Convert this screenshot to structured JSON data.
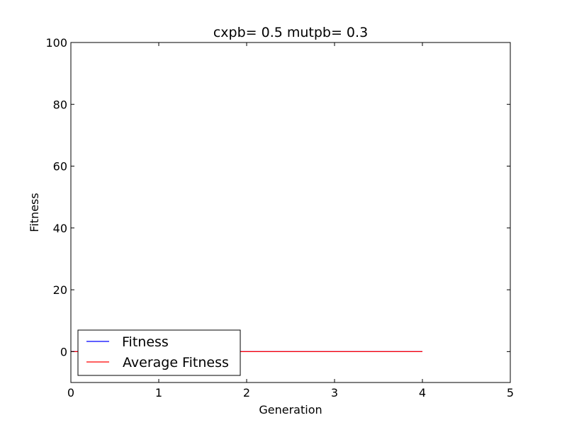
{
  "chart_data": {
    "type": "line",
    "title": "cxpb= 0.5 mutpb= 0.3",
    "xlabel": "Generation",
    "ylabel": "Fitness",
    "xlim": [
      0,
      5
    ],
    "ylim": [
      -10,
      100
    ],
    "xticks": [
      "0",
      "1",
      "2",
      "3",
      "4",
      "5"
    ],
    "yticks": [
      "0",
      "20",
      "40",
      "60",
      "80",
      "100"
    ],
    "x": [
      0,
      1,
      2,
      3,
      4
    ],
    "series": [
      {
        "name": "Fitness",
        "color": "#0000ff",
        "values": [
          0,
          0,
          0,
          0,
          0
        ]
      },
      {
        "name": "Average Fitness",
        "color": "#ff0000",
        "values": [
          0,
          0,
          0,
          0,
          0
        ]
      }
    ],
    "legend": "lower-left",
    "grid": false
  }
}
